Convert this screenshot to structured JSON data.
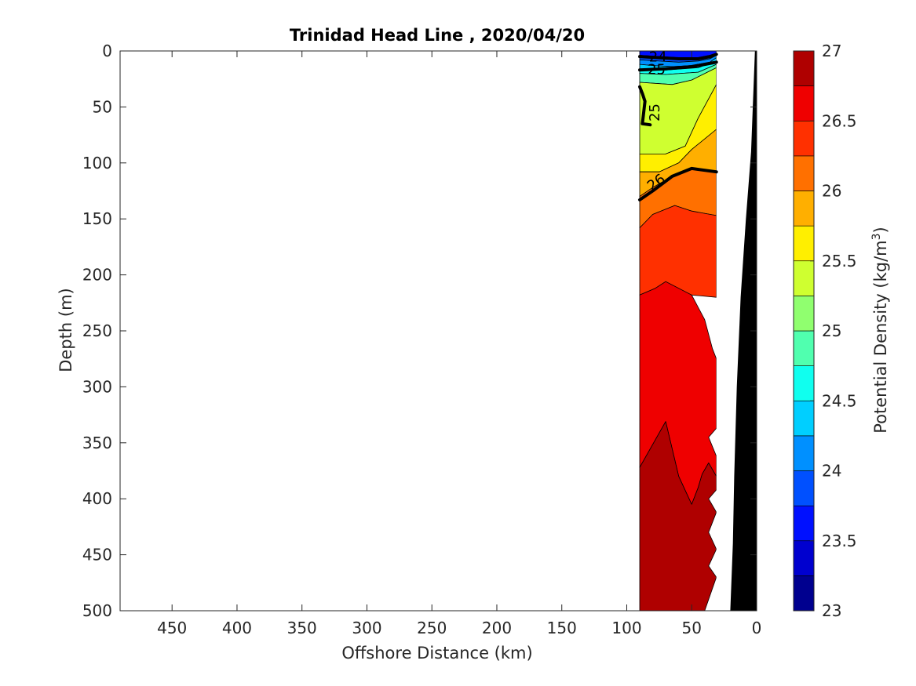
{
  "chart_data": {
    "type": "heatmap",
    "subtype": "filled contour section",
    "title": "Trinidad Head Line , 2020/04/20",
    "xlabel": "Offshore Distance (km)",
    "ylabel": "Depth (m)",
    "x_reversed": true,
    "y_reversed": true,
    "xlim": [
      490,
      0
    ],
    "ylim": [
      0,
      500
    ],
    "xticks": [
      450,
      400,
      350,
      300,
      250,
      200,
      150,
      100,
      50,
      0
    ],
    "yticks": [
      0,
      50,
      100,
      150,
      200,
      250,
      300,
      350,
      400,
      450,
      500
    ],
    "grid": false,
    "colorbar": {
      "label_main": "Potential Density (kg/m",
      "label_sup": "3",
      "label_end": ")",
      "min": 23,
      "max": 27,
      "step": 0.25,
      "ticks": [
        23,
        23.5,
        24,
        24.5,
        25,
        25.5,
        26,
        26.5,
        27
      ],
      "colors": [
        "#00008f",
        "#0000cf",
        "#0010ff",
        "#0050ff",
        "#0090ff",
        "#00cfff",
        "#10ffef",
        "#50ffaf",
        "#90ff6f",
        "#cfff30",
        "#ffef00",
        "#ffaf00",
        "#ff7000",
        "#ff3000",
        "#ef0000",
        "#af0000"
      ]
    },
    "data_extent": {
      "x_from": 90,
      "x_to": 31
    },
    "bands": [
      {
        "level_min": 23.75,
        "level_max": 24.0,
        "color": "#0010ff",
        "points": [
          [
            90,
            0
          ],
          [
            31,
            0
          ],
          [
            31,
            2
          ],
          [
            36,
            4
          ],
          [
            45,
            6
          ],
          [
            60,
            6
          ],
          [
            75,
            5
          ],
          [
            90,
            4
          ]
        ]
      },
      {
        "level_min": 24.0,
        "level_max": 24.25,
        "color": "#0050ff",
        "points": [
          [
            90,
            4
          ],
          [
            75,
            5
          ],
          [
            60,
            6
          ],
          [
            45,
            6
          ],
          [
            36,
            4
          ],
          [
            31,
            2
          ],
          [
            31,
            4
          ],
          [
            36,
            7
          ],
          [
            45,
            9
          ],
          [
            60,
            10
          ],
          [
            75,
            9
          ],
          [
            90,
            8
          ]
        ]
      },
      {
        "level_min": 24.25,
        "level_max": 24.5,
        "color": "#0090ff",
        "points": [
          [
            90,
            8
          ],
          [
            75,
            9
          ],
          [
            60,
            10
          ],
          [
            45,
            9
          ],
          [
            36,
            7
          ],
          [
            31,
            4
          ],
          [
            31,
            6
          ],
          [
            36,
            10
          ],
          [
            50,
            13
          ],
          [
            65,
            14
          ],
          [
            80,
            13
          ],
          [
            90,
            12
          ]
        ]
      },
      {
        "level_min": 24.5,
        "level_max": 24.75,
        "color": "#00cfff",
        "points": [
          [
            90,
            12
          ],
          [
            80,
            13
          ],
          [
            65,
            14
          ],
          [
            50,
            13
          ],
          [
            36,
            10
          ],
          [
            31,
            6
          ],
          [
            31,
            9
          ],
          [
            45,
            15
          ],
          [
            70,
            17
          ],
          [
            90,
            16
          ]
        ]
      },
      {
        "level_min": 24.75,
        "level_max": 25.0,
        "color": "#10ffef",
        "points": [
          [
            90,
            16
          ],
          [
            70,
            17
          ],
          [
            45,
            15
          ],
          [
            31,
            9
          ],
          [
            31,
            12
          ],
          [
            45,
            19
          ],
          [
            70,
            21
          ],
          [
            90,
            20
          ]
        ]
      },
      {
        "level_min": 25.0,
        "level_max": 25.25,
        "color": "#50ffaf",
        "points": [
          [
            90,
            20
          ],
          [
            70,
            21
          ],
          [
            45,
            19
          ],
          [
            31,
            12
          ],
          [
            31,
            15
          ],
          [
            50,
            26
          ],
          [
            65,
            30
          ],
          [
            90,
            28
          ]
        ]
      },
      {
        "level_min": 25.25,
        "level_max": 25.5,
        "color": "#cfff30",
        "points": [
          [
            90,
            28
          ],
          [
            65,
            30
          ],
          [
            50,
            26
          ],
          [
            31,
            15
          ],
          [
            31,
            30
          ],
          [
            45,
            60
          ],
          [
            55,
            85
          ],
          [
            70,
            92
          ],
          [
            90,
            92
          ]
        ]
      },
      {
        "level_min": 25.5,
        "level_max": 25.75,
        "color": "#ffef00",
        "points": [
          [
            90,
            92
          ],
          [
            70,
            92
          ],
          [
            55,
            85
          ],
          [
            45,
            60
          ],
          [
            31,
            30
          ],
          [
            31,
            70
          ],
          [
            50,
            88
          ],
          [
            60,
            100
          ],
          [
            75,
            108
          ],
          [
            90,
            108
          ]
        ]
      },
      {
        "level_min": 25.75,
        "level_max": 26.0,
        "color": "#ffaf00",
        "points": [
          [
            90,
            108
          ],
          [
            75,
            108
          ],
          [
            60,
            100
          ],
          [
            50,
            88
          ],
          [
            31,
            70
          ],
          [
            31,
            108
          ],
          [
            50,
            105
          ],
          [
            65,
            112
          ],
          [
            80,
            122
          ],
          [
            90,
            130
          ]
        ]
      },
      {
        "level_min": 26.0,
        "level_max": 26.25,
        "color": "#ff7000",
        "points": [
          [
            90,
            130
          ],
          [
            80,
            122
          ],
          [
            65,
            112
          ],
          [
            50,
            105
          ],
          [
            31,
            108
          ],
          [
            31,
            147
          ],
          [
            50,
            143
          ],
          [
            63,
            138
          ],
          [
            80,
            146
          ],
          [
            90,
            158
          ]
        ]
      },
      {
        "level_min": 26.25,
        "level_max": 26.5,
        "color": "#ff3000",
        "points": [
          [
            90,
            158
          ],
          [
            80,
            146
          ],
          [
            63,
            138
          ],
          [
            50,
            143
          ],
          [
            31,
            147
          ],
          [
            31,
            220
          ],
          [
            50,
            218
          ],
          [
            70,
            206
          ],
          [
            78,
            212
          ],
          [
            90,
            218
          ]
        ]
      },
      {
        "level_min": 26.5,
        "level_max": 26.75,
        "color": "#ef0000",
        "points": [
          [
            90,
            218
          ],
          [
            78,
            212
          ],
          [
            70,
            206
          ],
          [
            50,
            218
          ],
          [
            40,
            240
          ],
          [
            34,
            266
          ],
          [
            31,
            275
          ],
          [
            31,
            337
          ],
          [
            37,
            345
          ],
          [
            31,
            362
          ],
          [
            31,
            380
          ],
          [
            37,
            368
          ],
          [
            42,
            378
          ],
          [
            45,
            390
          ],
          [
            50,
            405
          ],
          [
            60,
            380
          ],
          [
            70,
            331
          ],
          [
            90,
            372
          ]
        ]
      },
      {
        "level_min": 26.75,
        "level_max": 27.0,
        "color": "#af0000",
        "points": [
          [
            90,
            372
          ],
          [
            70,
            331
          ],
          [
            60,
            380
          ],
          [
            50,
            405
          ],
          [
            45,
            390
          ],
          [
            42,
            378
          ],
          [
            37,
            368
          ],
          [
            31,
            380
          ],
          [
            31,
            392
          ],
          [
            37,
            400
          ],
          [
            31,
            412
          ],
          [
            37,
            430
          ],
          [
            31,
            445
          ],
          [
            37,
            460
          ],
          [
            31,
            470
          ],
          [
            40,
            500
          ],
          [
            90,
            500
          ]
        ]
      }
    ],
    "emphasized_contours": [
      {
        "level": 24,
        "points": [
          [
            90,
            5
          ],
          [
            75,
            6
          ],
          [
            60,
            7
          ],
          [
            45,
            7
          ],
          [
            36,
            5
          ],
          [
            31,
            3
          ]
        ]
      },
      {
        "level": 25,
        "points": [
          [
            90,
            17
          ],
          [
            70,
            16
          ],
          [
            50,
            14
          ],
          [
            40,
            12
          ],
          [
            31,
            10
          ]
        ]
      },
      {
        "level": 25,
        "points": [
          [
            90,
            32
          ],
          [
            88,
            38
          ],
          [
            86,
            45
          ],
          [
            88,
            65
          ],
          [
            82,
            66
          ]
        ]
      },
      {
        "level": 26,
        "points": [
          [
            90,
            133
          ],
          [
            80,
            125
          ],
          [
            65,
            112
          ],
          [
            50,
            105
          ],
          [
            31,
            108
          ]
        ]
      }
    ],
    "contour_labels": [
      {
        "text": "24",
        "x": 76,
        "y": 6,
        "rotate": 0
      },
      {
        "text": "25",
        "x": 77,
        "y": 17,
        "rotate": 0
      },
      {
        "text": "25",
        "x": 78,
        "y": 55,
        "rotate": -90
      },
      {
        "text": "26",
        "x": 77,
        "y": 118,
        "rotate": -35
      }
    ],
    "masked_region": {
      "color": "#ffffff",
      "points": [
        [
          31,
          0
        ],
        [
          31,
          500
        ],
        [
          20,
          500
        ],
        [
          18,
          440
        ],
        [
          17,
          380
        ],
        [
          15,
          300
        ],
        [
          12,
          220
        ],
        [
          8,
          150
        ],
        [
          4,
          90
        ],
        [
          1,
          0
        ]
      ]
    },
    "bathymetry": {
      "color": "#000000",
      "points": [
        [
          1,
          0
        ],
        [
          4,
          90
        ],
        [
          8,
          150
        ],
        [
          12,
          220
        ],
        [
          15,
          300
        ],
        [
          17,
          380
        ],
        [
          18,
          440
        ],
        [
          20,
          500
        ],
        [
          0,
          500
        ],
        [
          0,
          0
        ]
      ]
    }
  }
}
